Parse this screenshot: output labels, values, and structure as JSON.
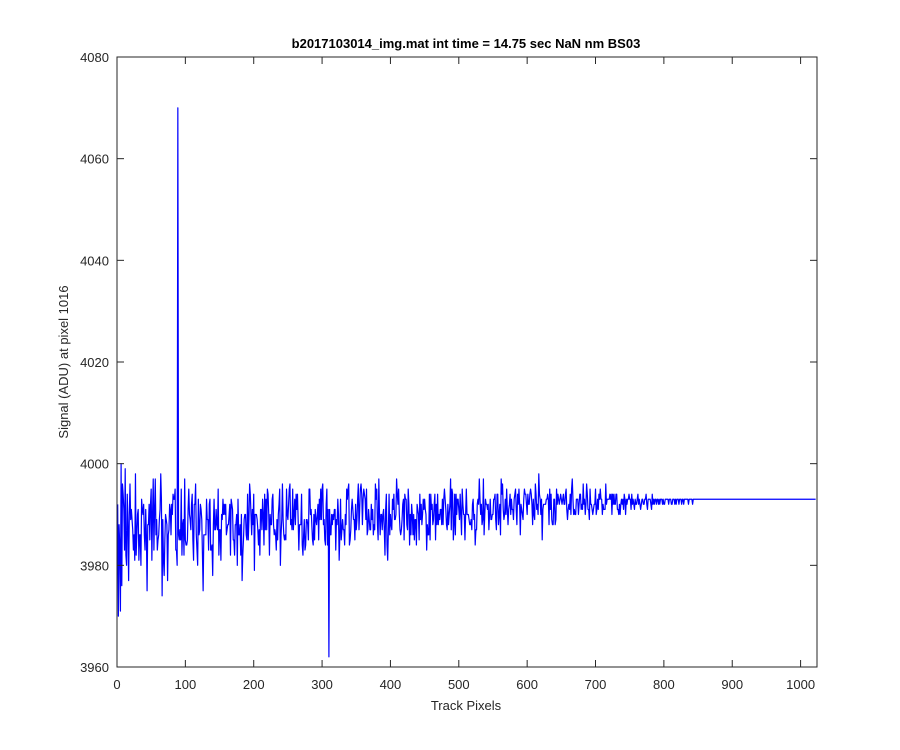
{
  "chart_data": {
    "type": "line",
    "title": "b2017103014_img.mat int time = 14.75 sec  NaN nm BS03",
    "xlabel": "Track Pixels",
    "ylabel": "Signal (ADU) at pixel 1016",
    "xlim": [
      0,
      1024
    ],
    "ylim": [
      3960,
      4080
    ],
    "xticks": [
      0,
      100,
      200,
      300,
      400,
      500,
      600,
      700,
      800,
      900,
      1000
    ],
    "yticks": [
      3960,
      3980,
      4000,
      4020,
      4040,
      4060,
      4080
    ],
    "grid": false,
    "line_color": "#0000ff",
    "series": [
      {
        "x_start": 1,
        "x_step": 1,
        "values": [
          3992,
          3970,
          3988,
          3984,
          3971,
          4000,
          3976,
          3996,
          3994,
          3991,
          3983,
          3999,
          3982,
          3980,
          3994,
          3988,
          3977,
          3990,
          3996,
          3989,
          3991,
          3989,
          3987,
          3983,
          3986,
          3981,
          3998,
          3982,
          3986,
          3990,
          3991,
          3981,
          3986,
          3986,
          3980,
          3993,
          3991,
          3990,
          3992,
          3986,
          3983,
          3991,
          3986,
          3975,
          3988,
          3988,
          3992,
          3985,
          3992,
          3995,
          3981,
          3990,
          3997,
          3983,
          3991,
          3997,
          3986,
          3989,
          3983,
          3985,
          3986,
          3989,
          3991,
          3998,
          3993,
          3974,
          3989,
          3981,
          3978,
          3985,
          3990,
          3989,
          3988,
          3977,
          3986,
          3987,
          3992,
          3991,
          3986,
          3992,
          3990,
          3994,
          3993,
          3993,
          3995,
          3983,
          3983,
          3980,
          4070,
          3986,
          3985,
          3987,
          3985,
          3995,
          3982,
          3988,
          3989,
          3982,
          3997,
          3985,
          3984,
          3984,
          3985,
          3991,
          3995,
          3990,
          3989,
          3987,
          3992,
          3994,
          3985,
          3981,
          3992,
          3992,
          3996,
          3986,
          3983,
          3980,
          3993,
          3986,
          3987,
          3992,
          3991,
          3989,
          3982,
          3975,
          3986,
          3986,
          3986,
          3986,
          3993,
          3989,
          3989,
          3983,
          3992,
          3993,
          3983,
          3983,
          3984,
          3978,
          3988,
          3993,
          3987,
          3987,
          3991,
          3988,
          3987,
          3995,
          3982,
          3987,
          3987,
          3981,
          3990,
          3989,
          3993,
          3990,
          3992,
          3990,
          3992,
          3986,
          3987,
          3988,
          3988,
          3990,
          3992,
          3982,
          3993,
          3992,
          3991,
          3985,
          3985,
          3982,
          3988,
          3988,
          3990,
          3980,
          3993,
          3986,
          3986,
          3988,
          3982,
          3990,
          3977,
          3982,
          3985,
          3989,
          3990,
          3990,
          3986,
          3985,
          3994,
          3985,
          3989,
          3996,
          3994,
          3990,
          3986,
          3991,
          3988,
          3994,
          3979,
          3990,
          3990,
          3990,
          3989,
          3987,
          3984,
          3987,
          3982,
          3991,
          3991,
          3987,
          3993,
          3990,
          3984,
          3994,
          3987,
          3993,
          3987,
          3995,
          3994,
          3990,
          3982,
          3990,
          3988,
          3988,
          3993,
          3994,
          3988,
          3986,
          3987,
          3986,
          3983,
          3989,
          3985,
          3990,
          3992,
          3995,
          3980,
          3986,
          3989,
          3996,
          3989,
          3986,
          3985,
          3986,
          3985,
          3995,
          3990,
          3989,
          3992,
          3995,
          3996,
          3988,
          3989,
          3987,
          3995,
          3987,
          3990,
          3993,
          3988,
          3994,
          3991,
          3994,
          3989,
          3983,
          3988,
          3988,
          3988,
          3994,
          3984,
          3982,
          3986,
          3989,
          3983,
          3984,
          3989,
          3989,
          3988,
          3985,
          3995,
          3995,
          3990,
          3991,
          3988,
          3985,
          3984,
          3990,
          3985,
          3991,
          3989,
          3988,
          3990,
          3992,
          3985,
          3993,
          3989,
          3995,
          3989,
          3995,
          3996,
          3988,
          3989,
          3985,
          3984,
          3992,
          3995,
          3984,
          3991,
          3962,
          3991,
          3986,
          3986,
          3990,
          3988,
          3990,
          3989,
          3991,
          3991,
          3983,
          3989,
          3988,
          3993,
          3990,
          3981,
          3986,
          3993,
          3985,
          3987,
          3989,
          3987,
          3987,
          3984,
          3990,
          3988,
          3995,
          3993,
          3995,
          3996,
          3984,
          3985,
          3987,
          3991,
          3993,
          3991,
          3989,
          3989,
          3985,
          3992,
          3987,
          3989,
          3993,
          3996,
          3987,
          3991,
          3995,
          3996,
          3994,
          3988,
          3993,
          3995,
          3994,
          3993,
          3989,
          3995,
          3986,
          3987,
          3991,
          3989,
          3987,
          3987,
          3992,
          3989,
          3991,
          3986,
          3988,
          3987,
          3996,
          3993,
          3995,
          3988,
          3985,
          3997,
          3990,
          3986,
          3990,
          3990,
          3987,
          3990,
          3991,
          3987,
          3982,
          3991,
          3994,
          3984,
          3981,
          3987,
          3994,
          3986,
          3990,
          3988,
          3987,
          3993,
          3991,
          3994,
          3989,
          3989,
          3990,
          3997,
          3994,
          3992,
          3995,
          3990,
          3987,
          3986,
          3987,
          3989,
          3992,
          3993,
          3985,
          3994,
          3993,
          3993,
          3988,
          3987,
          3995,
          3992,
          3984,
          3990,
          3986,
          3992,
          3990,
          3986,
          3990,
          3985,
          3989,
          3989,
          3984,
          3992,
          3991,
          3990,
          3985,
          3994,
          3989,
          3992,
          3988,
          3990,
          3993,
          3991,
          3993,
          3991,
          3990,
          3983,
          3988,
          3986,
          3986,
          3994,
          3985,
          3994,
          3991,
          3992,
          3988,
          3989,
          3992,
          3994,
          3985,
          3992,
          3988,
          3994,
          3988,
          3990,
          3989,
          3991,
          3991,
          3988,
          3993,
          3988,
          3993,
          3995,
          3993,
          3991,
          3988,
          3987,
          3992,
          3988,
          3990,
          3992,
          3997,
          3987,
          3995,
          3994,
          3985,
          3988,
          3994,
          3986,
          3994,
          3990,
          3993,
          3993,
          3991,
          3989,
          3994,
          3990,
          3986,
          3995,
          3992,
          3990,
          3990,
          3985,
          3990,
          3995,
          3990,
          3990,
          3990,
          3989,
          3988,
          3988,
          3989,
          3987,
          3992,
          3993,
          3989,
          3990,
          3984,
          3987,
          3987,
          3992,
          3993,
          3992,
          3997,
          3993,
          3990,
          3992,
          3988,
          3989,
          3997,
          3986,
          3990,
          3993,
          3992,
          3992,
          3991,
          3992,
          3987,
          3990,
          3993,
          3989,
          3989,
          3990,
          3990,
          3993,
          3993,
          3994,
          3989,
          3987,
          3994,
          3994,
          3988,
          3990,
          3992,
          3986,
          3997,
          3994,
          3996,
          3991,
          3989,
          3990,
          3993,
          3990,
          3995,
          3991,
          3988,
          3991,
          3992,
          3994,
          3990,
          3993,
          3991,
          3991,
          3989,
          3993,
          3994,
          3995,
          3991,
          3988,
          3994,
          3992,
          3995,
          3992,
          3986,
          3992,
          3991,
          3990,
          3989,
          3993,
          3995,
          3994,
          3994,
          3992,
          3990,
          3994,
          3992,
          3992,
          3994,
          3995,
          3994,
          3992,
          3988,
          3993,
          3990,
          3989,
          3996,
          3994,
          3991,
          3992,
          3990,
          3998,
          3994,
          3993,
          3990,
          3993,
          3985,
          3991,
          3992,
          3992,
          3992,
          3992,
          3993,
          3993,
          3994,
          3993,
          3988,
          3995,
          3991,
          3994,
          3989,
          3988,
          3988,
          3993,
          3993,
          3988,
          3989,
          3995,
          3992,
          3994,
          3993,
          3992,
          3993,
          3994,
          3993,
          3992,
          3993,
          3994,
          3992,
          3992,
          3994,
          3995,
          3991,
          3989,
          3991,
          3992,
          3991,
          3994,
          3990,
          3995,
          3997,
          3993,
          3990,
          3991,
          3990,
          3990,
          3993,
          3993,
          3993,
          3990,
          3992,
          3994,
          3994,
          3991,
          3992,
          3991,
          3996,
          3992,
          3993,
          3990,
          3992,
          3996,
          3994,
          3991,
          3991,
          3989,
          3995,
          3992,
          3992,
          3991,
          3990,
          3991,
          3992,
          3992,
          3995,
          3990,
          3991,
          3993,
          3991,
          3994,
          3993,
          3995,
          3993,
          3993,
          3990,
          3992,
          3991,
          3991,
          3991,
          3996,
          3992,
          3993,
          3993,
          3993,
          3993,
          3994,
          3993,
          3994,
          3990,
          3994,
          3992,
          3994,
          3992,
          3992,
          3994,
          3994,
          3991,
          3991,
          3990,
          3992,
          3990,
          3992,
          3993,
          3992,
          3993,
          3991,
          3994,
          3993,
          3990,
          3993,
          3992,
          3993,
          3993,
          3994,
          3993,
          3993,
          3991,
          3994,
          3992,
          3993,
          3992,
          3991,
          3993,
          3992,
          3992,
          3993,
          3994,
          3992,
          3993,
          3992,
          3991,
          3992,
          3993,
          3993,
          3992,
          3992,
          3993,
          3993,
          3994,
          3992,
          3991,
          3993,
          3993,
          3993,
          3993,
          3992,
          3991,
          3994,
          3992,
          3993,
          3992,
          3993,
          3993,
          3992,
          3993,
          3993,
          3992,
          3993,
          3992,
          3993,
          3993,
          3993,
          3992,
          3993,
          3992,
          3992,
          3993,
          3993,
          3993,
          3993,
          3993,
          3992,
          3993,
          3993,
          3993,
          3992,
          3992,
          3993,
          3993,
          3993,
          3992,
          3993,
          3992,
          3993,
          3993,
          3993,
          3992,
          3993,
          3993,
          3993,
          3992,
          3993,
          3993,
          3992,
          3993,
          3993,
          3993,
          3993,
          3993,
          3993,
          3992,
          3993,
          3993,
          3993,
          3993,
          3993,
          3992,
          3993,
          3993,
          3993,
          3993,
          3993,
          3993,
          3993,
          3993,
          3993,
          3993,
          3993,
          3993,
          3993,
          3993,
          3993,
          3993,
          3993,
          3993,
          3993,
          3993,
          3993,
          3993,
          3993,
          3993,
          3993,
          3993,
          3993,
          3993,
          3993,
          3993,
          3993,
          3993,
          3993,
          3993,
          3993,
          3993,
          3993,
          3993,
          3993,
          3993,
          3993,
          3993,
          3993,
          3993,
          3993,
          3993,
          3993,
          3993,
          3993,
          3993,
          3993,
          3993,
          3993,
          3993,
          3993,
          3993,
          3993,
          3993,
          3993,
          3993,
          3993,
          3993,
          3993,
          3993,
          3993,
          3993,
          3993,
          3993,
          3993,
          3993,
          3993,
          3993,
          3993,
          3993,
          3993,
          3993,
          3993,
          3993,
          3993,
          3993,
          3993,
          3993,
          3993,
          3993,
          3993,
          3993,
          3993,
          3993,
          3993,
          3993,
          3993,
          3993,
          3993,
          3993,
          3993,
          3993,
          3993,
          3993,
          3993,
          3993,
          3993,
          3993,
          3993,
          3993,
          3993,
          3993,
          3993,
          3993,
          3993,
          3993,
          3993,
          3993,
          3993,
          3993,
          3993,
          3993,
          3993,
          3993,
          3993,
          3993,
          3993,
          3993,
          3993,
          3993,
          3993,
          3993,
          3993,
          3993,
          3993,
          3993,
          3993,
          3993,
          3993,
          3993,
          3993,
          3993,
          3993,
          3993,
          3993,
          3993,
          3993,
          3993,
          3993,
          3993,
          3993,
          3993,
          3993,
          3993,
          3993,
          3993,
          3993,
          3993,
          3993,
          3993,
          3993,
          3993,
          3993,
          3993,
          3993,
          3993,
          3993,
          3993,
          3993,
          3993,
          3993,
          3993,
          3993,
          3993,
          3993,
          3993,
          3993,
          3993,
          3993,
          3993,
          3993,
          3993,
          3993,
          3993,
          3993,
          3993
        ]
      }
    ]
  }
}
